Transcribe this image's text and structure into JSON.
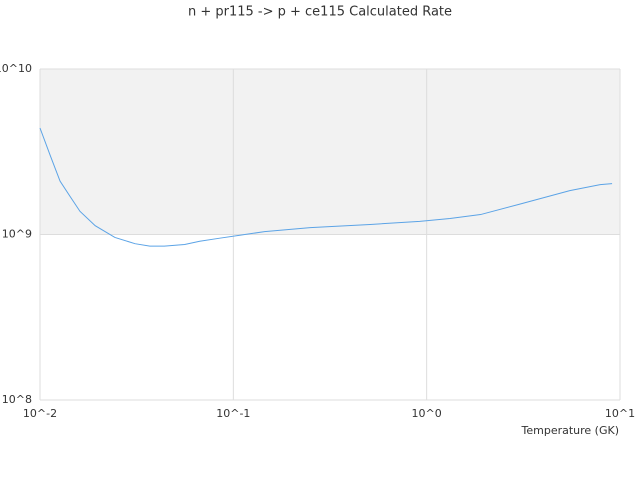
{
  "chart_data": {
    "type": "line",
    "title": "n + pr115 -> p + ce115 Calculated Rate",
    "x_label": "Temperature (GK)",
    "x": [
      0.01,
      0.0113,
      0.0127,
      0.0143,
      0.0161,
      0.0193,
      0.0244,
      0.031,
      0.037,
      0.044,
      0.056,
      0.067,
      0.085,
      0.108,
      0.145,
      0.25,
      0.51,
      0.92,
      1.32,
      1.9,
      3.0,
      5.5,
      7.9,
      9.1
    ],
    "values": [
      4400000000,
      3000000000,
      2100000000,
      1700000000,
      1380000000,
      1130000000,
      960000000,
      880000000,
      850000000,
      850000000,
      870000000,
      910000000,
      950000000,
      990000000,
      1040000000,
      1100000000,
      1150000000,
      1200000000,
      1250000000,
      1320000000,
      1520000000,
      1840000000,
      2000000000,
      2030000000
    ],
    "color": "#5ba3e6",
    "xscale": "log",
    "yscale": "log",
    "xlim": [
      0.01,
      10
    ],
    "ylim": [
      100000000,
      10000000000
    ],
    "xticks": [
      {
        "value": 0.01,
        "label": "10^-2"
      },
      {
        "value": 0.1,
        "label": "10^-1"
      },
      {
        "value": 1,
        "label": "10^0"
      },
      {
        "value": 10,
        "label": "10^1"
      }
    ],
    "yticks": [
      {
        "value": 100000000,
        "label": "10^8"
      },
      {
        "value": 1000000000,
        "label": "10^9"
      },
      {
        "value": 10000000000,
        "label": "10^10"
      }
    ],
    "band_color": "#f2f2f2",
    "grid": true
  }
}
